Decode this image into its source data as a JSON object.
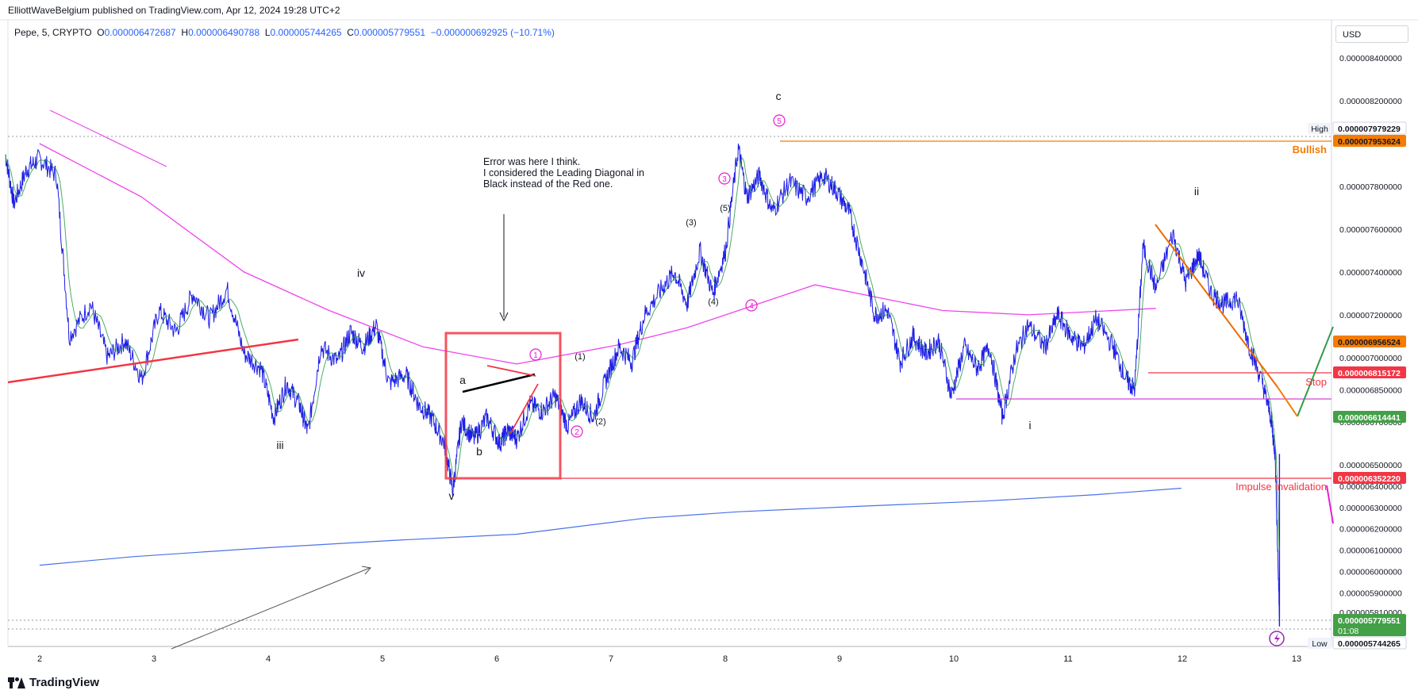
{
  "header": {
    "attribution": "ElliottWaveBelgium published on TradingView.com, Apr 12, 2024 19:28 UTC+2",
    "symbol": "Pepe, 5, CRYPTO",
    "open_label": "O",
    "open": "0.000006472687",
    "high_label": "H",
    "high": "0.000006490788",
    "low_label": "L",
    "low": "0.000005744265",
    "close_label": "C",
    "close": "0.000005779551",
    "change": "−0.000000692925 (−10.71%)"
  },
  "currency_button": "USD",
  "brand": "TradingView",
  "chart_data": {
    "type": "line",
    "x_ticks": [
      "2",
      "3",
      "4",
      "5",
      "6",
      "7",
      "8",
      "9",
      "10",
      "11",
      "12",
      "13"
    ],
    "y_ticks": [
      "0.000008400000",
      "0.000008200000",
      "0.000008000000",
      "0.000007800000",
      "0.000007600000",
      "0.000007400000",
      "0.000007200000",
      "0.000007000000",
      "0.000006850000",
      "0.000006700000",
      "0.000006500000",
      "0.000006400000",
      "0.000006300000",
      "0.000006200000",
      "0.000006100000",
      "0.000006000000",
      "0.000005900000",
      "0.000005810000"
    ],
    "y_tick_values": [
      8.4e-06,
      8.2e-06,
      8e-06,
      7.8e-06,
      7.6e-06,
      7.4e-06,
      7.2e-06,
      7e-06,
      6.85e-06,
      6.7e-06,
      6.5e-06,
      6.4e-06,
      6.3e-06,
      6.2e-06,
      6.1e-06,
      6e-06,
      5.9e-06,
      5.81e-06
    ],
    "price_series": [
      [
        1.0,
        7.95e-06
      ],
      [
        1.1,
        7.72e-06
      ],
      [
        1.25,
        7.88e-06
      ],
      [
        1.4,
        7.93e-06
      ],
      [
        1.6,
        7.85e-06
      ],
      [
        1.75,
        7.1e-06
      ],
      [
        2.0,
        7.25e-06
      ],
      [
        2.2,
        7e-06
      ],
      [
        2.4,
        7.08e-06
      ],
      [
        2.6,
        6.9e-06
      ],
      [
        2.8,
        7.22e-06
      ],
      [
        3.0,
        7.12e-06
      ],
      [
        3.2,
        7.3e-06
      ],
      [
        3.4,
        7.18e-06
      ],
      [
        3.6,
        7.32e-06
      ],
      [
        3.8,
        7.02e-06
      ],
      [
        4.0,
        6.95e-06
      ],
      [
        4.15,
        6.72e-06
      ],
      [
        4.3,
        6.88e-06
      ],
      [
        4.45,
        6.78e-06
      ],
      [
        4.55,
        6.65e-06
      ],
      [
        4.7,
        7.05e-06
      ],
      [
        4.9,
        6.98e-06
      ],
      [
        5.05,
        7.12e-06
      ],
      [
        5.2,
        7.05e-06
      ],
      [
        5.35,
        7.15e-06
      ],
      [
        5.5,
        6.88e-06
      ],
      [
        5.7,
        6.92e-06
      ],
      [
        5.85,
        6.78e-06
      ],
      [
        6.0,
        6.72e-06
      ],
      [
        6.15,
        6.6e-06
      ],
      [
        6.25,
        6.38e-06
      ],
      [
        6.35,
        6.7e-06
      ],
      [
        6.5,
        6.62e-06
      ],
      [
        6.65,
        6.72e-06
      ],
      [
        6.8,
        6.6e-06
      ],
      [
        6.9,
        6.66e-06
      ],
      [
        7.0,
        6.62e-06
      ],
      [
        7.15,
        6.78e-06
      ],
      [
        7.3,
        6.75e-06
      ],
      [
        7.45,
        6.82e-06
      ],
      [
        7.6,
        6.68e-06
      ],
      [
        7.75,
        6.8e-06
      ],
      [
        7.9,
        6.72e-06
      ],
      [
        8.05,
        6.9e-06
      ],
      [
        8.2,
        7.05e-06
      ],
      [
        8.35,
        6.98e-06
      ],
      [
        8.5,
        7.2e-06
      ],
      [
        8.7,
        7.32e-06
      ],
      [
        8.85,
        7.4e-06
      ],
      [
        9.0,
        7.25e-06
      ],
      [
        9.15,
        7.5e-06
      ],
      [
        9.3,
        7.3e-06
      ],
      [
        9.45,
        7.5e-06
      ],
      [
        9.6,
        7.98e-06
      ],
      [
        9.7,
        7.75e-06
      ],
      [
        9.85,
        7.85e-06
      ],
      [
        10.0,
        7.68e-06
      ],
      [
        10.2,
        7.82e-06
      ],
      [
        10.4,
        7.75e-06
      ],
      [
        10.6,
        7.85e-06
      ],
      [
        10.75,
        7.78e-06
      ],
      [
        10.9,
        7.68e-06
      ],
      [
        11.05,
        7.45e-06
      ],
      [
        11.2,
        7.2e-06
      ],
      [
        11.35,
        7.22e-06
      ],
      [
        11.5,
        6.98e-06
      ],
      [
        11.65,
        7.1e-06
      ],
      [
        11.8,
        7.02e-06
      ],
      [
        11.95,
        7.08e-06
      ],
      [
        12.1,
        6.82e-06
      ],
      [
        12.25,
        7.05e-06
      ],
      [
        12.4,
        6.95e-06
      ],
      [
        12.55,
        7.05e-06
      ],
      [
        12.7,
        6.72e-06
      ],
      [
        12.85,
        7.02e-06
      ],
      [
        13.0,
        7.15e-06
      ],
      [
        13.2,
        7.05e-06
      ],
      [
        13.35,
        7.2e-06
      ],
      [
        13.5,
        7.1e-06
      ],
      [
        13.65,
        7.05e-06
      ],
      [
        13.8,
        7.18e-06
      ],
      [
        14.0,
        7.05e-06
      ],
      [
        14.15,
        6.9e-06
      ],
      [
        14.25,
        6.85e-06
      ],
      [
        14.35,
        7.52e-06
      ],
      [
        14.5,
        7.32e-06
      ],
      [
        14.7,
        7.58e-06
      ],
      [
        14.85,
        7.35e-06
      ],
      [
        15.0,
        7.48e-06
      ],
      [
        15.15,
        7.3e-06
      ],
      [
        15.3,
        7.25e-06
      ],
      [
        15.45,
        7.28e-06
      ],
      [
        15.6,
        7.05e-06
      ],
      [
        15.75,
        6.88e-06
      ],
      [
        15.85,
        6.72e-06
      ],
      [
        15.9,
        6.55e-06
      ],
      [
        15.95,
        5.78e-06
      ]
    ],
    "moving_average_magenta": [
      [
        1.4,
        8e-06
      ],
      [
        2.6,
        7.75e-06
      ],
      [
        3.8,
        7.4e-06
      ],
      [
        4.8,
        7.22e-06
      ],
      [
        5.9,
        7.05e-06
      ],
      [
        7.0,
        6.97e-06
      ],
      [
        8.2,
        7.06e-06
      ],
      [
        9.0,
        7.14e-06
      ],
      [
        10.5,
        7.34e-06
      ],
      [
        12.0,
        7.22e-06
      ],
      [
        13.0,
        7.2e-06
      ],
      [
        14.0,
        7.22e-06
      ],
      [
        14.5,
        7.23e-06
      ]
    ],
    "moving_average_blue": [
      [
        1.4,
        6.03e-06
      ],
      [
        2.5,
        6.07e-06
      ],
      [
        4.0,
        6.11e-06
      ],
      [
        5.5,
        6.145e-06
      ],
      [
        7.0,
        6.175e-06
      ],
      [
        8.5,
        6.25e-06
      ],
      [
        9.6,
        6.28e-06
      ],
      [
        11.0,
        6.305e-06
      ],
      [
        12.5,
        6.33e-06
      ],
      [
        13.8,
        6.36e-06
      ],
      [
        14.8,
        6.39e-06
      ]
    ],
    "annotations": {
      "wave_labels": [
        "iii",
        "iv",
        "v",
        "a",
        "b",
        "c",
        "i",
        "ii",
        "(1)",
        "(2)",
        "(3)",
        "(4)",
        "(5)"
      ],
      "circled_labels": [
        "1",
        "2",
        "3",
        "4",
        "5"
      ],
      "note_lines": [
        "Error was here I think.",
        "I considered the Leading Diagonal  in",
        "Black instead of the Red one."
      ],
      "level_texts": [
        "Bullish",
        "Stop",
        "Impulse Invalidation"
      ],
      "high_label": "High",
      "low_label": "Low"
    },
    "price_tags": [
      {
        "label": "0.000007979229",
        "color": "#ffffff",
        "text_color": "#131722",
        "border": true
      },
      {
        "label": "0.000007953624",
        "color": "#f57c00",
        "text_color": "#131722"
      },
      {
        "label": "0.000006956524",
        "color": "#f57c00",
        "text_color": "#131722"
      },
      {
        "label": "0.000006815172",
        "color": "#f23645",
        "text_color": "#ffffff"
      },
      {
        "label": "0.000006614441",
        "color": "#43a047",
        "text_color": "#ffffff"
      },
      {
        "label": "0.000006352220",
        "color": "#f23645",
        "text_color": "#ffffff"
      },
      {
        "label": "0.000005779551",
        "sub": "01:08",
        "color": "#43a047",
        "text_color": "#ffffff"
      },
      {
        "label": "0.000005744265",
        "color": "#ffffff",
        "text_color": "#131722",
        "border": true
      }
    ],
    "colors": {
      "price": "#1e1ee6",
      "ma_fast": "#2e9e4a",
      "ma_magenta": "#ee44ee",
      "ma_blue": "#4a72e8",
      "red": "#f23645",
      "orange": "#f57c00",
      "green": "#2e9e4a",
      "magenta_label": "#e91ecf"
    }
  }
}
